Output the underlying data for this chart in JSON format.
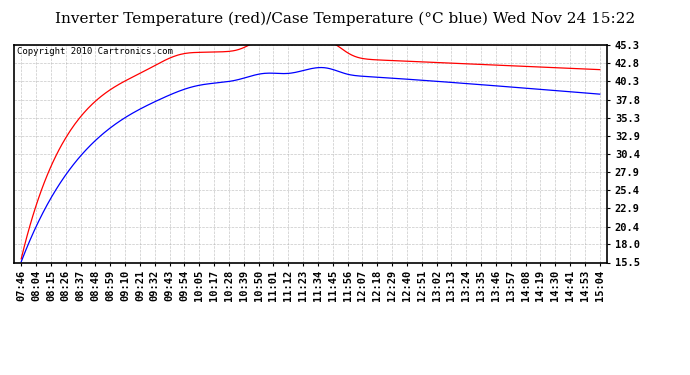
{
  "title": "Inverter Temperature (red)/Case Temperature (°C blue) Wed Nov 24 15:22",
  "copyright_text": "Copyright 2010 Cartronics.com",
  "y_min": 15.5,
  "y_max": 45.3,
  "y_ticks": [
    15.5,
    18.0,
    20.4,
    22.9,
    25.4,
    27.9,
    30.4,
    32.9,
    35.3,
    37.8,
    40.3,
    42.8,
    45.3
  ],
  "x_labels": [
    "07:46",
    "08:04",
    "08:15",
    "08:26",
    "08:37",
    "08:48",
    "08:59",
    "09:10",
    "09:21",
    "09:32",
    "09:43",
    "09:54",
    "10:05",
    "10:17",
    "10:28",
    "10:39",
    "10:50",
    "11:01",
    "11:12",
    "11:23",
    "11:34",
    "11:45",
    "11:56",
    "12:07",
    "12:18",
    "12:29",
    "12:40",
    "12:51",
    "13:02",
    "13:13",
    "13:24",
    "13:35",
    "13:46",
    "13:57",
    "14:08",
    "14:19",
    "14:30",
    "14:41",
    "14:53",
    "15:04"
  ],
  "red_color": "#ff0000",
  "blue_color": "#0000ff",
  "grid_color": "#b0b0b0",
  "bg_color": "#ffffff",
  "title_fontsize": 11,
  "tick_fontsize": 7.5,
  "copyright_fontsize": 6.5
}
